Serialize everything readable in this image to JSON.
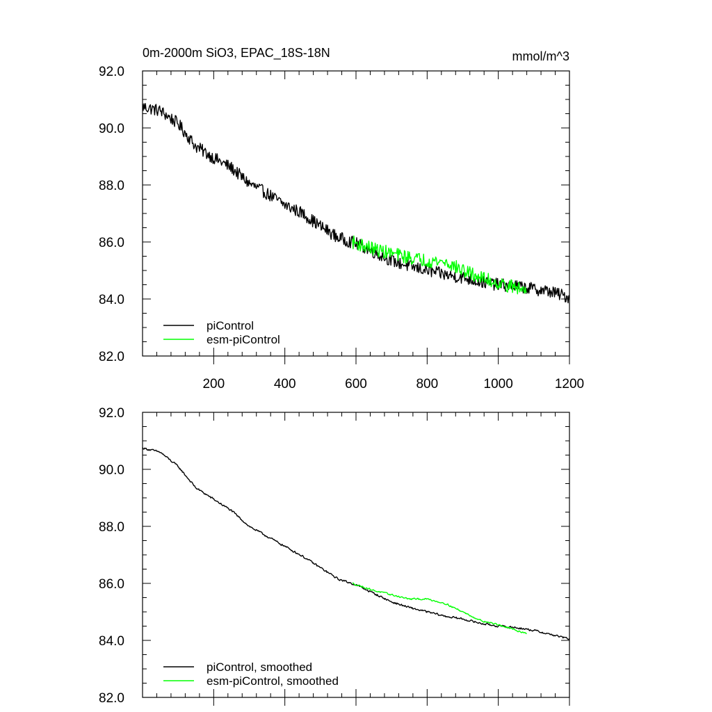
{
  "chart_data": [
    {
      "type": "line",
      "title": "0m-2000m SiO3, EPAC_18S-18N",
      "units": "mmol/m^3",
      "xlim": [
        0,
        1200
      ],
      "ylim": [
        82,
        92
      ],
      "xticks": [
        200,
        400,
        600,
        800,
        1000,
        1200
      ],
      "xtick_labels": [
        "200",
        "400",
        "600",
        "800",
        "1000",
        "1200"
      ],
      "yticks": [
        82,
        84,
        86,
        88,
        90,
        92
      ],
      "ytick_labels": [
        "82.0",
        "84.0",
        "86.0",
        "88.0",
        "90.0",
        "92.0"
      ],
      "legend": [
        "piControl",
        "esm-piControl"
      ],
      "legend_position": "bottom-left",
      "series": [
        {
          "name": "piControl",
          "color": "#000000",
          "noise": 0.22,
          "x": [
            0,
            50,
            100,
            150,
            200,
            250,
            300,
            350,
            400,
            450,
            500,
            550,
            600,
            650,
            700,
            750,
            800,
            850,
            900,
            950,
            1000,
            1050,
            1100,
            1150,
            1200
          ],
          "values": [
            90.75,
            90.6,
            90.15,
            89.35,
            88.95,
            88.6,
            88.05,
            87.7,
            87.3,
            87.0,
            86.55,
            86.15,
            85.95,
            85.65,
            85.35,
            85.15,
            85.0,
            84.85,
            84.75,
            84.6,
            84.5,
            84.45,
            84.35,
            84.25,
            84.05
          ]
        },
        {
          "name": "esm-piControl",
          "color": "#00ff00",
          "noise": 0.24,
          "x": [
            590,
            650,
            700,
            750,
            800,
            850,
            900,
            950,
            1000,
            1050,
            1080
          ],
          "values": [
            86.0,
            85.75,
            85.6,
            85.45,
            85.35,
            85.3,
            85.0,
            84.75,
            84.55,
            84.4,
            84.3
          ]
        }
      ]
    },
    {
      "type": "line",
      "title": "",
      "xlim": [
        0,
        1200
      ],
      "ylim": [
        82,
        92
      ],
      "xticks": [
        200,
        400,
        600,
        800,
        1000,
        1200
      ],
      "yticks": [
        82,
        84,
        86,
        88,
        90,
        92
      ],
      "ytick_labels": [
        "82.0",
        "84.0",
        "86.0",
        "88.0",
        "90.0",
        "92.0"
      ],
      "legend": [
        "piControl, smoothed",
        "esm-piControl, smoothed"
      ],
      "legend_position": "bottom-left",
      "series": [
        {
          "name": "piControl, smoothed",
          "color": "#000000",
          "noise": 0.05,
          "x": [
            0,
            50,
            100,
            150,
            200,
            250,
            300,
            350,
            400,
            450,
            500,
            550,
            600,
            650,
            700,
            750,
            800,
            850,
            900,
            950,
            1000,
            1050,
            1100,
            1150,
            1200
          ],
          "values": [
            90.75,
            90.6,
            90.1,
            89.35,
            88.95,
            88.55,
            88.0,
            87.65,
            87.3,
            86.95,
            86.55,
            86.15,
            85.95,
            85.65,
            85.35,
            85.15,
            85.0,
            84.85,
            84.75,
            84.6,
            84.5,
            84.45,
            84.35,
            84.2,
            84.05
          ]
        },
        {
          "name": "esm-piControl, smoothed",
          "color": "#00ff00",
          "noise": 0.04,
          "x": [
            590,
            650,
            700,
            750,
            800,
            850,
            900,
            950,
            1000,
            1050,
            1080
          ],
          "values": [
            86.0,
            85.75,
            85.6,
            85.45,
            85.45,
            85.3,
            85.0,
            84.7,
            84.55,
            84.35,
            84.25
          ]
        }
      ]
    }
  ]
}
